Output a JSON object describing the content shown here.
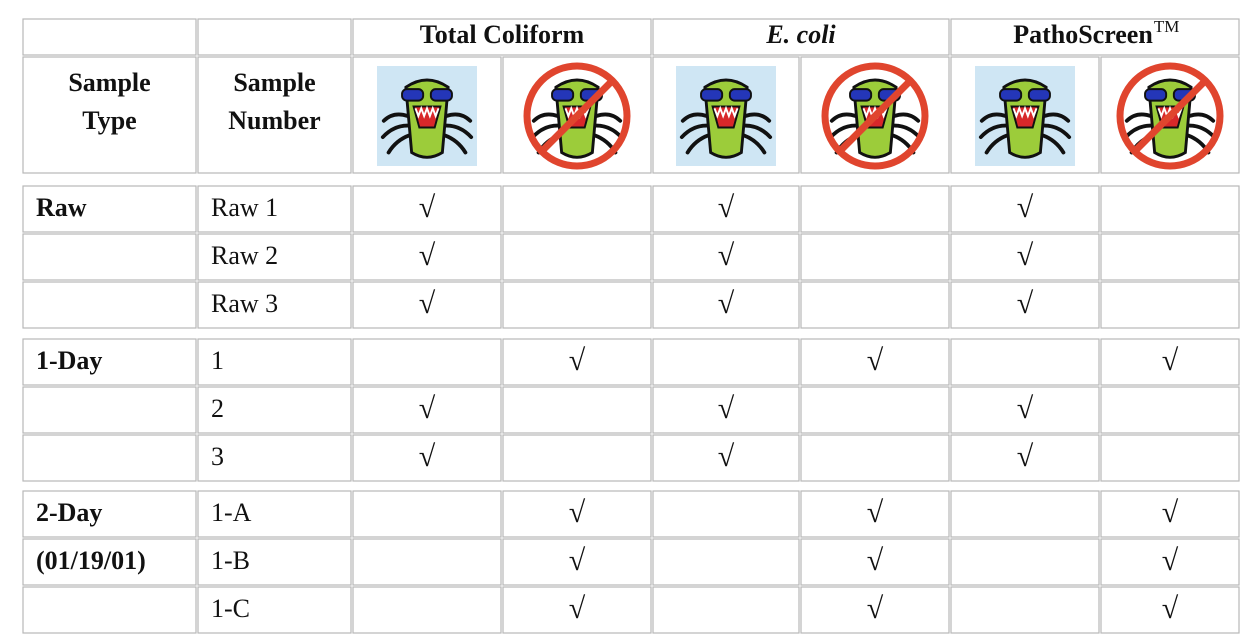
{
  "header": {
    "groups": [
      "Total Coliform",
      "E. coli",
      "PathoScreen"
    ],
    "trademark": "TM",
    "sample_type": [
      "Sample",
      "Type"
    ],
    "sample_number": [
      "Sample",
      "Number"
    ]
  },
  "rows": [
    {
      "type": "Raw",
      "number": "Raw 1",
      "marks": [
        "√",
        null,
        "√",
        null,
        "√",
        null
      ]
    },
    {
      "type": null,
      "number": "Raw 2",
      "marks": [
        "√",
        null,
        "√",
        null,
        "√",
        null
      ]
    },
    {
      "type": null,
      "number": "Raw 3",
      "marks": [
        "√",
        null,
        "√",
        null,
        "√",
        null
      ]
    },
    {
      "type": "1-Day",
      "number": "1",
      "marks": [
        null,
        "√",
        null,
        "√",
        null,
        "√"
      ]
    },
    {
      "type": null,
      "number": "2",
      "marks": [
        "√",
        null,
        "√",
        null,
        "√",
        null
      ]
    },
    {
      "type": null,
      "number": "3",
      "marks": [
        "√",
        null,
        "√",
        null,
        "√",
        null
      ]
    },
    {
      "type": "2-Day",
      "number": "1-A",
      "marks": [
        null,
        "√",
        null,
        "√",
        null,
        "√"
      ]
    },
    {
      "type": "(01/19/01)",
      "number": "1-B",
      "marks": [
        null,
        "√",
        null,
        "√",
        null,
        "√"
      ]
    },
    {
      "type": null,
      "number": "1-C",
      "marks": [
        null,
        "√",
        null,
        "√",
        null,
        "√"
      ]
    }
  ]
}
